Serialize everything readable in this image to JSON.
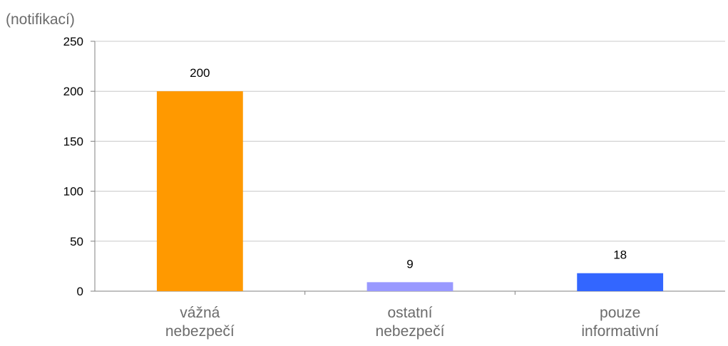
{
  "chart_data": {
    "type": "bar",
    "unit_label": "(notifikací)",
    "categories": [
      [
        "vážná",
        "nebezpečí"
      ],
      [
        "ostatní",
        "nebezpečí"
      ],
      [
        "pouze",
        "informativní"
      ]
    ],
    "values": [
      200,
      9,
      18
    ],
    "data_labels": [
      "200",
      "9",
      "18"
    ],
    "bar_colors": [
      "#ff9900",
      "#9999ff",
      "#3366ff"
    ],
    "ylim": [
      0,
      250
    ],
    "yticks": [
      0,
      50,
      100,
      150,
      200,
      250
    ],
    "ytick_labels": [
      "0",
      "50",
      "100",
      "150",
      "200",
      "250"
    ],
    "grid": true,
    "grid_color": "#c8c8c8",
    "axis_color": "#808080",
    "label_color": "#6b6b6b"
  }
}
